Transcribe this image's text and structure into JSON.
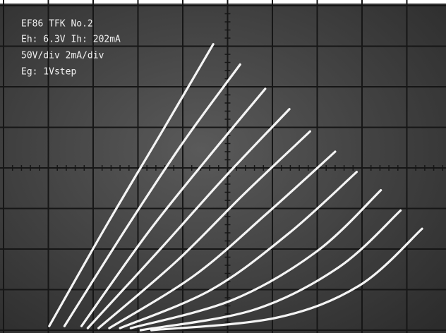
{
  "chart_data": {
    "type": "line",
    "annotations": [
      "EF86 TFK No.2",
      "Eh: 6.3V Ih: 202mA",
      "50V/div 2mA/div",
      "Eg: 1Vstep"
    ],
    "xlim": [
      0,
      500
    ],
    "ylim": [
      0,
      16
    ],
    "color": "#f4f4f4",
    "series": [
      {
        "x": [
          51,
          114,
          177,
          234
        ],
        "values": [
          0.2,
          5.1,
          9.8,
          14.1
        ]
      },
      {
        "x": [
          68,
          138,
          201,
          264
        ],
        "values": [
          0.2,
          5.1,
          9.3,
          13.1
        ]
      },
      {
        "x": [
          87,
          161,
          228,
          292
        ],
        "values": [
          0.2,
          4.8,
          8.5,
          11.9
        ]
      },
      {
        "x": [
          94,
          177,
          248,
          319
        ],
        "values": [
          0.1,
          4.1,
          7.6,
          10.9
        ]
      },
      {
        "x": [
          106,
          193,
          268,
          342
        ],
        "values": [
          0.1,
          3.4,
          6.7,
          9.8
        ]
      },
      {
        "x": [
          118,
          213,
          295,
          370
        ],
        "values": [
          0.1,
          2.7,
          5.8,
          8.8
        ]
      },
      {
        "x": [
          130,
          232,
          319,
          394
        ],
        "values": [
          0.1,
          2.0,
          4.8,
          7.8
        ]
      },
      {
        "x": [
          142,
          256,
          350,
          421
        ],
        "values": [
          0.1,
          1.5,
          3.9,
          6.9
        ]
      },
      {
        "x": [
          153,
          279,
          374,
          443
        ],
        "values": [
          0.0,
          1.0,
          3.1,
          5.9
        ]
      },
      {
        "x": [
          165,
          303,
          397,
          467
        ],
        "values": [
          0.0,
          0.6,
          2.2,
          5.0
        ]
      }
    ]
  }
}
